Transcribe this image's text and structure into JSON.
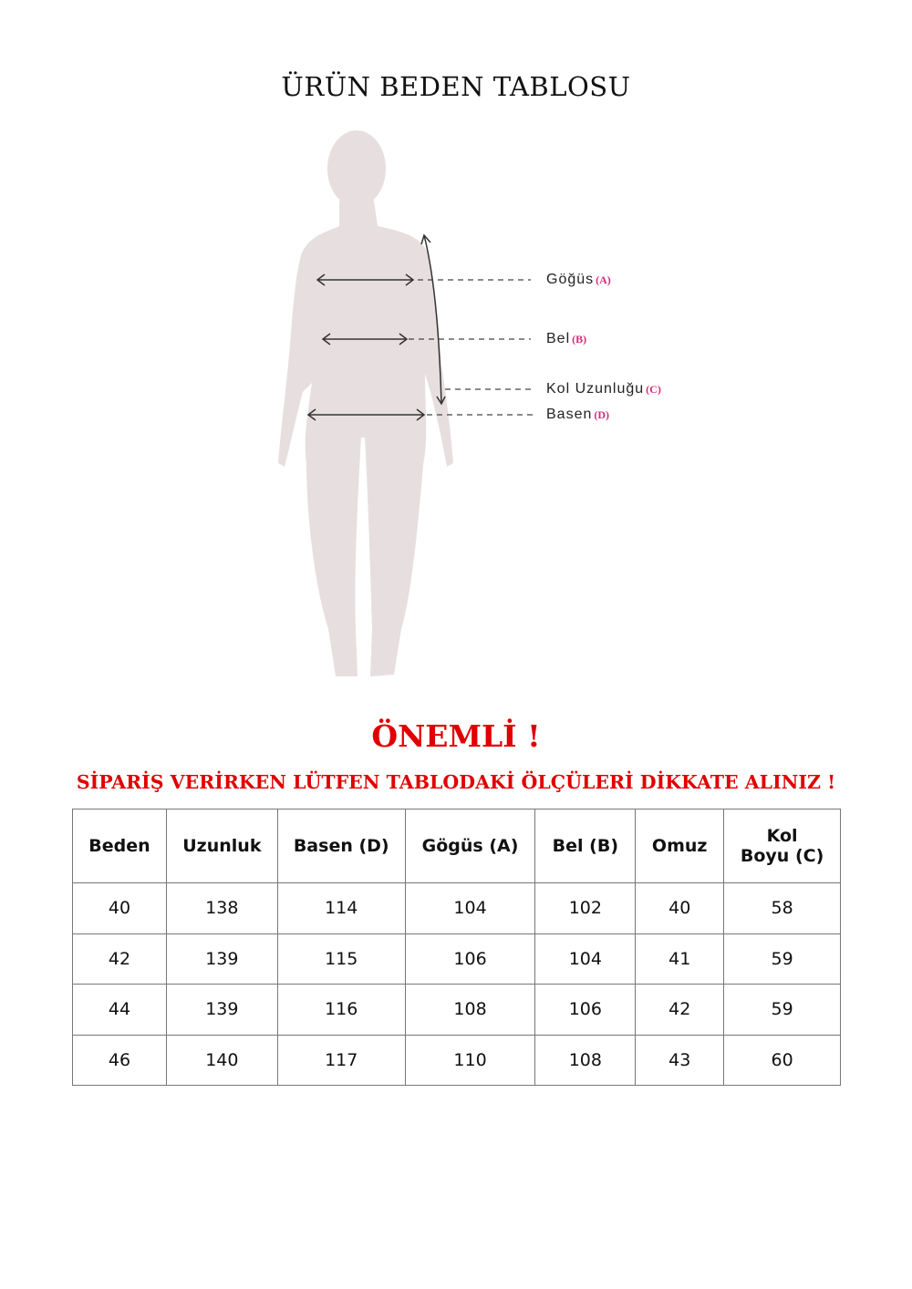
{
  "title": "ÜRÜN BEDEN TABLOSU",
  "diagram": {
    "labels": [
      {
        "text": "Göğüs",
        "key": "(A)"
      },
      {
        "text": "Bel",
        "key": "(B)"
      },
      {
        "text": "Kol Uzunluğu",
        "key": "(C)"
      },
      {
        "text": "Basen",
        "key": "(D)"
      }
    ],
    "silhouette_color": "#e7dfdf",
    "key_color": "#d62a7a"
  },
  "notice": {
    "heading": "ÖNEMLİ !",
    "message": "SİPARİŞ VERİRKEN LÜTFEN TABLODAKİ ÖLÇÜLERİ DİKKATE ALINIZ !",
    "color": "#e00000"
  },
  "table": {
    "headers": [
      "Beden",
      "Uzunluk",
      "Basen (D)",
      "Gögüs (A)",
      "Bel (B)",
      "Omuz",
      "Kol\nBoyu (C)"
    ],
    "rows": [
      [
        "40",
        "138",
        "114",
        "104",
        "102",
        "40",
        "58"
      ],
      [
        "42",
        "139",
        "115",
        "106",
        "104",
        "41",
        "59"
      ],
      [
        "44",
        "139",
        "116",
        "108",
        "106",
        "42",
        "59"
      ],
      [
        "46",
        "140",
        "117",
        "110",
        "108",
        "43",
        "60"
      ]
    ]
  }
}
